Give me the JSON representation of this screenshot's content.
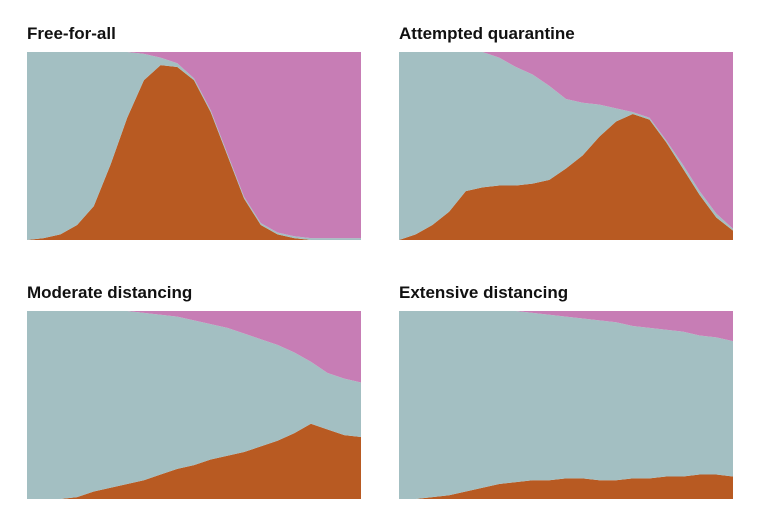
{
  "chart_data": [
    {
      "type": "area",
      "title": "Free-for-all",
      "stacked": true,
      "ylim": [
        0,
        100
      ],
      "series": [
        {
          "color": "#b85a22",
          "values": [
            0,
            1,
            3,
            8,
            18,
            40,
            65,
            85,
            93,
            92,
            85,
            68,
            45,
            22,
            8,
            3,
            1,
            0,
            0,
            0,
            0
          ]
        },
        {
          "color": "#a3bfc2",
          "values": [
            100,
            99,
            97,
            92,
            82,
            60,
            35,
            14,
            4,
            2,
            1,
            1,
            1,
            1,
            1,
            1,
            1,
            1,
            1,
            1,
            1
          ]
        },
        {
          "color": "#c77db5",
          "values": [
            0,
            0,
            0,
            0,
            0,
            0,
            0,
            1,
            3,
            6,
            14,
            31,
            54,
            77,
            91,
            96,
            98,
            99,
            99,
            99,
            99
          ]
        }
      ]
    },
    {
      "type": "area",
      "title": "Attempted quarantine",
      "stacked": true,
      "ylim": [
        0,
        100
      ],
      "series": [
        {
          "color": "#b85a22",
          "values": [
            0,
            3,
            8,
            15,
            26,
            28,
            29,
            29,
            30,
            32,
            38,
            45,
            55,
            63,
            67,
            64,
            52,
            38,
            24,
            12,
            5
          ]
        },
        {
          "color": "#a3bfc2",
          "values": [
            100,
            97,
            92,
            85,
            74,
            72,
            68,
            63,
            58,
            50,
            37,
            28,
            17,
            7,
            1,
            1,
            1,
            2,
            2,
            2,
            1
          ]
        },
        {
          "color": "#c77db5",
          "values": [
            0,
            0,
            0,
            0,
            0,
            0,
            3,
            8,
            12,
            18,
            25,
            27,
            28,
            30,
            32,
            35,
            47,
            60,
            74,
            86,
            94
          ]
        }
      ]
    },
    {
      "type": "area",
      "title": "Moderate distancing",
      "stacked": true,
      "ylim": [
        0,
        100
      ],
      "series": [
        {
          "color": "#b85a22",
          "values": [
            0,
            0,
            0,
            1,
            4,
            6,
            8,
            10,
            13,
            16,
            18,
            21,
            23,
            25,
            28,
            31,
            35,
            40,
            37,
            34,
            33
          ]
        },
        {
          "color": "#a3bfc2",
          "values": [
            100,
            100,
            100,
            99,
            96,
            94,
            92,
            89,
            85,
            81,
            77,
            72,
            68,
            63,
            57,
            51,
            43,
            33,
            30,
            30,
            29
          ]
        },
        {
          "color": "#c77db5",
          "values": [
            0,
            0,
            0,
            0,
            0,
            0,
            0,
            1,
            2,
            3,
            5,
            7,
            9,
            12,
            15,
            18,
            22,
            27,
            33,
            36,
            38
          ]
        }
      ]
    },
    {
      "type": "area",
      "title": "Extensive distancing",
      "stacked": true,
      "ylim": [
        0,
        100
      ],
      "series": [
        {
          "color": "#b85a22",
          "values": [
            0,
            0,
            1,
            2,
            4,
            6,
            8,
            9,
            10,
            10,
            11,
            11,
            10,
            10,
            11,
            11,
            12,
            12,
            13,
            13,
            12
          ]
        },
        {
          "color": "#a3bfc2",
          "values": [
            100,
            100,
            99,
            98,
            96,
            94,
            92,
            91,
            89,
            88,
            86,
            85,
            85,
            84,
            81,
            80,
            78,
            77,
            74,
            73,
            72
          ]
        },
        {
          "color": "#c77db5",
          "values": [
            0,
            0,
            0,
            0,
            0,
            0,
            0,
            0,
            1,
            2,
            3,
            4,
            5,
            6,
            8,
            9,
            10,
            11,
            13,
            14,
            16
          ]
        }
      ]
    }
  ]
}
